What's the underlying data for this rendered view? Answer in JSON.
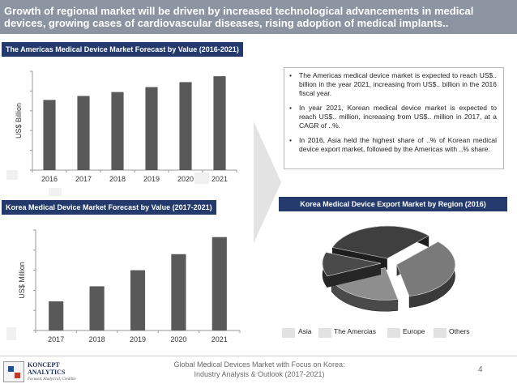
{
  "header": {
    "title": "Growth of regional market will be driven by increased technological advancements in medical devices, growing cases of cardiovascular diseases, rising adoption of medical implants.."
  },
  "left_top": {
    "title": "The Americas Medical Device Market Forecast by Value (2016-2021)"
  },
  "left_bottom": {
    "title": "Korea Medical Device Market Forecast by Value (2017-2021)"
  },
  "right_bottom": {
    "title": "Korea Medical Device Export Market by Region (2016)"
  },
  "notes": {
    "bullets": [
      "The Americas medical device market is expected to reach US$.. billion in the year 2021, increasing from US$.. billion in the 2016 fiscal year.",
      "In year 2021, Korean medical device market is expected to reach US$.. million, increasing from US$.. million in 2017, at a CAGR of ..%.",
      "In 2016, Asia held the highest share of ..% of Korean medical device export market, followed by the Americas with ..% share."
    ]
  },
  "footer": {
    "line1": "Global Medical Devices Market with Focus on Korea:",
    "line2": "Industry Analysis & Outlook (2017-2021)",
    "page_number": "4"
  },
  "logo": {
    "name_line1": "KONCEPT",
    "name_line2": "ANALYTICS",
    "tagline": "Focused, Analytical, Credible"
  },
  "colors": {
    "header_bg": "#8c93a1",
    "title_bg": "#243a6d",
    "bar": "#595959",
    "pie": "#595959"
  },
  "chart_data": [
    {
      "type": "bar",
      "categories": [
        "2016",
        "2017",
        "2018",
        "2019",
        "2020",
        "2021"
      ],
      "values": [
        71,
        75,
        79,
        84,
        89,
        95
      ],
      "ylabel": "US$ Billion",
      "xlabel": "",
      "ylim": [
        0,
        100
      ],
      "grid": false
    },
    {
      "type": "bar",
      "categories": [
        "2017",
        "2018",
        "2019",
        "2020",
        "2021"
      ],
      "values": [
        29,
        44,
        60,
        76,
        93
      ],
      "ylabel": "US$ Million",
      "xlabel": "",
      "ylim": [
        0,
        100
      ],
      "grid": false
    },
    {
      "type": "pie",
      "style": "3d-exploded",
      "labels": [
        "Asia",
        "The Amercias",
        "Europe",
        "Others"
      ],
      "values": [
        32,
        12,
        34,
        22
      ]
    }
  ]
}
